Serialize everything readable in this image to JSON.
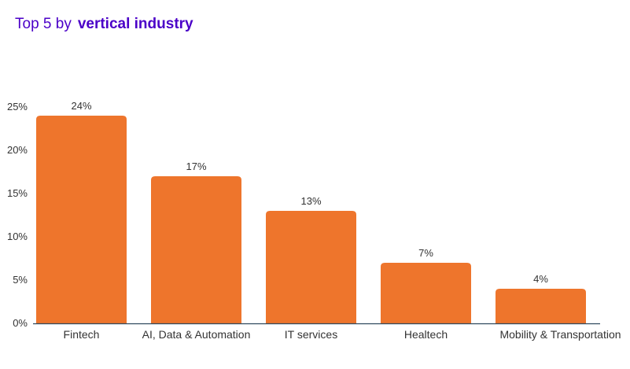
{
  "header": {
    "title_prefix": "Top 5 by",
    "title_emphasis": "vertical industry"
  },
  "colors": {
    "bar": "#ee752c",
    "title": "#4b00c8",
    "axis": "#2f4a5e",
    "text": "#333333"
  },
  "chart_data": {
    "type": "bar",
    "title": "Top 5 by vertical industry",
    "categories": [
      "Fintech",
      "AI, Data & Automation",
      "IT services",
      "Healtech",
      "Mobility & Transportation"
    ],
    "values": [
      24,
      17,
      13,
      7,
      4
    ],
    "value_labels": [
      "24%",
      "17%",
      "13%",
      "7%",
      "4%"
    ],
    "ylim": [
      0,
      25
    ],
    "yticks": [
      0,
      5,
      10,
      15,
      20,
      25
    ],
    "ytick_labels": [
      "0%",
      "5%",
      "10%",
      "15%",
      "20%",
      "25%"
    ],
    "xlabel": "",
    "ylabel": "",
    "grid": false,
    "legend": "none"
  }
}
